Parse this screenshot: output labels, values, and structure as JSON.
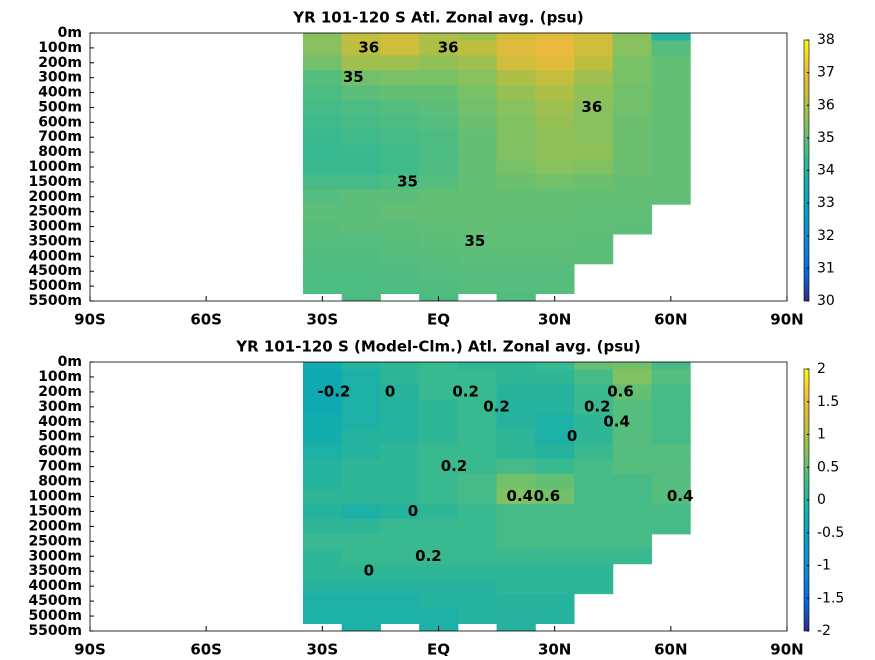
{
  "chart_data": [
    {
      "type": "heatmap",
      "title": "YR 101-120 S Atl. Zonal avg. (psu)",
      "colormap": "parula",
      "xlim": [
        -90,
        90
      ],
      "xticks": [
        {
          "value": -90,
          "label": "90S"
        },
        {
          "value": -60,
          "label": "60S"
        },
        {
          "value": -30,
          "label": "30S"
        },
        {
          "value": 0,
          "label": "EQ"
        },
        {
          "value": 30,
          "label": "30N"
        },
        {
          "value": 60,
          "label": "60N"
        },
        {
          "value": 90,
          "label": "90N"
        }
      ],
      "y": [
        "0m",
        "100m",
        "200m",
        "300m",
        "400m",
        "500m",
        "600m",
        "700m",
        "800m",
        "1000m",
        "1500m",
        "2000m",
        "2500m",
        "3000m",
        "3500m",
        "4000m",
        "4500m",
        "5000m",
        "5500m"
      ],
      "x": [
        -30,
        -20,
        -10,
        0,
        10,
        20,
        30,
        40,
        50,
        60
      ],
      "clim": [
        30,
        38
      ],
      "cticks": [
        30,
        31,
        32,
        33,
        34,
        35,
        36,
        37,
        38
      ],
      "values": [
        [
          35.5,
          36.3,
          36.5,
          36.0,
          35.8,
          36.5,
          36.8,
          36.5,
          35.5,
          34.0
        ],
        [
          35.5,
          36.2,
          36.5,
          36.0,
          36.2,
          36.8,
          37.0,
          36.5,
          35.5,
          34.8
        ],
        [
          35.2,
          35.8,
          35.8,
          35.6,
          35.8,
          36.5,
          36.8,
          36.2,
          35.3,
          35.0
        ],
        [
          34.8,
          35.2,
          35.3,
          35.3,
          35.5,
          36.0,
          36.3,
          35.8,
          35.3,
          35.0
        ],
        [
          34.7,
          34.9,
          35.0,
          35.0,
          35.3,
          35.7,
          36.0,
          35.6,
          35.2,
          35.0
        ],
        [
          34.6,
          34.7,
          34.8,
          34.9,
          35.2,
          35.5,
          35.8,
          35.5,
          35.2,
          35.0
        ],
        [
          34.5,
          34.6,
          34.7,
          34.8,
          35.1,
          35.4,
          35.7,
          35.5,
          35.1,
          35.0
        ],
        [
          34.4,
          34.5,
          34.6,
          34.7,
          35.0,
          35.4,
          35.6,
          35.5,
          35.1,
          35.0
        ],
        [
          34.4,
          34.4,
          34.5,
          34.7,
          35.0,
          35.4,
          35.6,
          35.6,
          35.1,
          35.0
        ],
        [
          34.4,
          34.4,
          34.5,
          34.7,
          35.0,
          35.3,
          35.5,
          35.4,
          35.1,
          35.0
        ],
        [
          34.6,
          34.6,
          34.7,
          34.8,
          35.0,
          35.1,
          35.2,
          35.1,
          35.0,
          35.0
        ],
        [
          34.8,
          34.9,
          34.9,
          35.0,
          35.0,
          35.0,
          35.0,
          35.0,
          35.0,
          34.95
        ],
        [
          34.9,
          34.9,
          35.0,
          35.0,
          35.0,
          35.0,
          35.0,
          34.95,
          34.95,
          null
        ],
        [
          34.85,
          34.9,
          34.9,
          34.95,
          35.0,
          34.95,
          34.95,
          34.95,
          34.9,
          null
        ],
        [
          34.8,
          34.8,
          34.85,
          34.9,
          34.95,
          34.95,
          34.95,
          34.9,
          null,
          null
        ],
        [
          34.75,
          34.75,
          34.8,
          34.85,
          34.9,
          34.9,
          34.9,
          34.9,
          null,
          null
        ],
        [
          34.7,
          34.7,
          34.75,
          34.8,
          34.85,
          34.85,
          34.85,
          null,
          null,
          null
        ],
        [
          34.7,
          34.7,
          34.7,
          34.75,
          34.8,
          34.8,
          34.8,
          null,
          null,
          null
        ],
        [
          null,
          34.7,
          null,
          34.7,
          null,
          34.75,
          null,
          null,
          null,
          null
        ]
      ],
      "annotations": [
        {
          "text": "36",
          "x": -18,
          "y": "100m"
        },
        {
          "text": "36",
          "x": 2.5,
          "y": "100m"
        },
        {
          "text": "35",
          "x": -22,
          "y": "300m"
        },
        {
          "text": "36",
          "x": 39.6,
          "y": "500m"
        },
        {
          "text": "35",
          "x": -8,
          "y": "1500m"
        },
        {
          "text": "35",
          "x": 9.4,
          "y": "3500m"
        }
      ]
    },
    {
      "type": "heatmap",
      "title": "YR 101-120 S (Model-Clm.) Atl. Zonal avg. (psu)",
      "colormap": "parula",
      "xlim": [
        -90,
        90
      ],
      "xticks": [
        {
          "value": -90,
          "label": "90S"
        },
        {
          "value": -60,
          "label": "60S"
        },
        {
          "value": -30,
          "label": "30S"
        },
        {
          "value": 0,
          "label": "EQ"
        },
        {
          "value": 30,
          "label": "30N"
        },
        {
          "value": 60,
          "label": "60N"
        },
        {
          "value": 90,
          "label": "90N"
        }
      ],
      "y": [
        "0m",
        "100m",
        "200m",
        "300m",
        "400m",
        "500m",
        "600m",
        "700m",
        "800m",
        "1000m",
        "1500m",
        "2000m",
        "2500m",
        "3000m",
        "3500m",
        "4000m",
        "4500m",
        "5000m",
        "5500m"
      ],
      "x": [
        -30,
        -20,
        -10,
        0,
        10,
        20,
        30,
        40,
        50,
        60
      ],
      "clim": [
        -2,
        2
      ],
      "cticks": [
        -2,
        -1.5,
        -1,
        -0.5,
        0,
        0.5,
        1,
        1.5,
        2
      ],
      "values": [
        [
          -0.2,
          0,
          0.1,
          0.2,
          0.1,
          0.1,
          0.2,
          0.5,
          0.6,
          0.3
        ],
        [
          -0.3,
          -0.1,
          0.1,
          0.2,
          0.2,
          0.1,
          0.1,
          0.3,
          0.7,
          0.4
        ],
        [
          -0.3,
          -0.1,
          0,
          0.2,
          0.2,
          0,
          0,
          0.2,
          0.5,
          0.3
        ],
        [
          -0.3,
          -0.1,
          0,
          0.1,
          0.2,
          0,
          0,
          0.2,
          0.4,
          0.3
        ],
        [
          -0.2,
          -0.1,
          0,
          0.1,
          0.2,
          0,
          -0.1,
          0.1,
          0.4,
          0.3
        ],
        [
          -0.2,
          0,
          0,
          0.1,
          0.2,
          0.1,
          -0.1,
          0.1,
          0.4,
          0.3
        ],
        [
          -0.1,
          0,
          0.1,
          0.2,
          0.2,
          0.1,
          0,
          0.2,
          0.4,
          0.4
        ],
        [
          0,
          0.1,
          0.1,
          0.2,
          0.2,
          0.3,
          0.2,
          0.3,
          0.4,
          0.4
        ],
        [
          0,
          0.1,
          0.1,
          0.2,
          0.3,
          0.6,
          0.5,
          0.3,
          0.3,
          0.4
        ],
        [
          0.1,
          0.1,
          0.1,
          0.2,
          0.3,
          0.7,
          0.6,
          0.3,
          0.3,
          0.4
        ],
        [
          0,
          -0.1,
          0,
          0.1,
          0.2,
          0.3,
          0.3,
          0.3,
          0.3,
          0.3
        ],
        [
          0.1,
          0.1,
          0.2,
          0.2,
          0.2,
          0.3,
          0.3,
          0.3,
          0.3,
          0.3
        ],
        [
          0.2,
          0.2,
          0.2,
          0.2,
          0.2,
          0.3,
          0.3,
          0.3,
          0.3,
          null
        ],
        [
          0.1,
          0.2,
          0.2,
          0.2,
          0.2,
          0.2,
          0.2,
          0.2,
          0.2,
          null
        ],
        [
          0.1,
          0.1,
          0.1,
          0.1,
          0.1,
          0.1,
          0.1,
          0.1,
          null,
          null
        ],
        [
          0,
          0,
          0,
          0,
          0,
          0.1,
          0.1,
          0.1,
          null,
          null
        ],
        [
          -0.1,
          -0.1,
          -0.1,
          0,
          0,
          0,
          0,
          null,
          null,
          null
        ],
        [
          -0.1,
          -0.1,
          -0.1,
          -0.1,
          0,
          0,
          0,
          null,
          null,
          null
        ],
        [
          null,
          -0.1,
          null,
          -0.1,
          null,
          0,
          null,
          null,
          null,
          null
        ]
      ],
      "annotations": [
        {
          "text": "-0.2",
          "x": -27,
          "y": "200m"
        },
        {
          "text": "0",
          "x": -12.5,
          "y": "200m"
        },
        {
          "text": "0.2",
          "x": 7,
          "y": "200m"
        },
        {
          "text": "0.2",
          "x": 15,
          "y": "300m"
        },
        {
          "text": "0",
          "x": 34.5,
          "y": "500m"
        },
        {
          "text": "0.2",
          "x": 41,
          "y": "300m"
        },
        {
          "text": "0.4",
          "x": 46,
          "y": "400m"
        },
        {
          "text": "0.6",
          "x": 47,
          "y": "200m"
        },
        {
          "text": "0.2",
          "x": 4,
          "y": "700m"
        },
        {
          "text": "0.4",
          "x": 21,
          "y": "1000m"
        },
        {
          "text": "0.6",
          "x": 28,
          "y": "1000m"
        },
        {
          "text": "0",
          "x": -6.6,
          "y": "1500m"
        },
        {
          "text": "0.4",
          "x": 62.4,
          "y": "1000m"
        },
        {
          "text": "0.2",
          "x": -2.6,
          "y": "3000m"
        },
        {
          "text": "0",
          "x": -18,
          "y": "3500m"
        }
      ]
    }
  ]
}
